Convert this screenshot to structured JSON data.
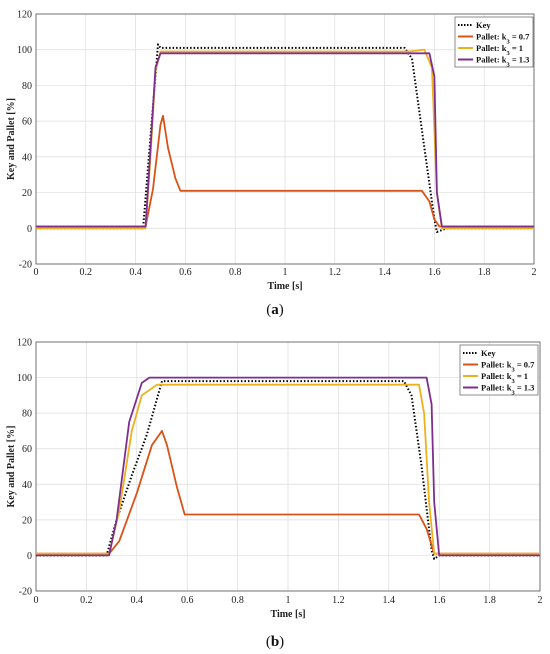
{
  "chart_data": [
    {
      "type": "line",
      "caption_open": "(",
      "caption_letter": "a",
      "caption_close": ")",
      "xlabel": "Time [s]",
      "ylabel": "Key and Pallet [%]",
      "xlim": [
        0,
        2
      ],
      "ylim": [
        -20,
        120
      ],
      "xticks": [
        "0",
        "0.2",
        "0.4",
        "0.6",
        "0.8",
        "1",
        "1.2",
        "1.4",
        "1.6",
        "1.8",
        "2"
      ],
      "yticks": [
        "-20",
        "0",
        "20",
        "40",
        "60",
        "80",
        "100",
        "120"
      ],
      "grid": true,
      "legend_position": "top-right",
      "series": [
        {
          "name": "Key",
          "color": "#000000",
          "dash": "dotted",
          "x": [
            0,
            0.43,
            0.49,
            0.5,
            1.48,
            1.51,
            1.55,
            1.6,
            1.61,
            1.65,
            2.0
          ],
          "y": [
            0,
            0,
            103,
            101,
            101,
            95,
            55,
            5,
            -2,
            0,
            0
          ]
        },
        {
          "name": "Pallet: k3 = 0.7",
          "legend_prefix": "Pallet: k",
          "legend_sub": "3",
          "legend_suffix": " = 0.7",
          "color": "#d95319",
          "x": [
            0,
            0.44,
            0.47,
            0.5,
            0.51,
            0.53,
            0.56,
            0.58,
            0.6,
            1.55,
            1.58,
            1.6,
            1.62,
            2.0
          ],
          "y": [
            1,
            1,
            22,
            58,
            63,
            45,
            28,
            21,
            21,
            21,
            15,
            5,
            1,
            1
          ]
        },
        {
          "name": "Pallet: k3 = 1",
          "legend_prefix": "Pallet: k",
          "legend_sub": "3",
          "legend_suffix": " = 1",
          "color": "#edb120",
          "x": [
            0,
            0.44,
            0.46,
            0.48,
            0.5,
            1.5,
            1.56,
            1.59,
            1.61,
            1.63,
            2.0
          ],
          "y": [
            0,
            0,
            40,
            88,
            99,
            99,
            100,
            90,
            20,
            0,
            0
          ]
        },
        {
          "name": "Pallet: k3 = 1.3",
          "legend_prefix": "Pallet: k",
          "legend_sub": "3",
          "legend_suffix": " = 1.3",
          "color": "#7e2f8e",
          "x": [
            0,
            0.44,
            0.46,
            0.48,
            0.5,
            1.58,
            1.6,
            1.61,
            1.63,
            2.0
          ],
          "y": [
            1,
            1,
            45,
            90,
            98,
            98,
            85,
            20,
            1,
            1
          ]
        }
      ]
    },
    {
      "type": "line",
      "caption_open": "(",
      "caption_letter": "b",
      "caption_close": ")",
      "xlabel": "Time [s]",
      "ylabel": "Key and Pallet [%]",
      "xlim": [
        0,
        2
      ],
      "ylim": [
        -20,
        120
      ],
      "xticks": [
        "0",
        "0.2",
        "0.4",
        "0.6",
        "0.8",
        "1",
        "1.2",
        "1.4",
        "1.6",
        "1.8",
        "2"
      ],
      "yticks": [
        "-20",
        "0",
        "20",
        "40",
        "60",
        "80",
        "100",
        "120"
      ],
      "grid": true,
      "legend_position": "top-right",
      "series": [
        {
          "name": "Key",
          "color": "#000000",
          "dash": "dotted",
          "x": [
            0,
            0.28,
            0.32,
            0.38,
            0.44,
            0.5,
            1.46,
            1.49,
            1.53,
            1.57,
            1.58,
            1.6,
            2.0
          ],
          "y": [
            0,
            0,
            20,
            45,
            68,
            98,
            98,
            90,
            50,
            3,
            -2,
            0,
            0
          ]
        },
        {
          "name": "Pallet: k3 = 0.7",
          "legend_prefix": "Pallet: k",
          "legend_sub": "3",
          "legend_suffix": " = 0.7",
          "color": "#d95319",
          "x": [
            0,
            0.29,
            0.33,
            0.4,
            0.46,
            0.5,
            0.52,
            0.56,
            0.59,
            1.52,
            1.55,
            1.58,
            2.0
          ],
          "y": [
            1,
            1,
            8,
            35,
            62,
            70,
            62,
            38,
            23,
            23,
            15,
            1,
            1
          ]
        },
        {
          "name": "Pallet: k3 = 1",
          "legend_prefix": "Pallet: k",
          "legend_sub": "3",
          "legend_suffix": " = 1",
          "color": "#edb120",
          "x": [
            0,
            0.29,
            0.33,
            0.38,
            0.42,
            0.48,
            1.52,
            1.54,
            1.56,
            1.58,
            2.0
          ],
          "y": [
            1,
            1,
            25,
            70,
            90,
            96,
            96,
            80,
            30,
            1,
            1
          ]
        },
        {
          "name": "Pallet: k3 = 1.3",
          "legend_prefix": "Pallet: k",
          "legend_sub": "3",
          "legend_suffix": " = 1.3",
          "color": "#7e2f8e",
          "x": [
            0,
            0.29,
            0.32,
            0.37,
            0.42,
            0.45,
            1.55,
            1.57,
            1.58,
            1.6,
            2.0
          ],
          "y": [
            0,
            0,
            20,
            75,
            97,
            100,
            100,
            85,
            30,
            0,
            0
          ]
        }
      ]
    }
  ]
}
